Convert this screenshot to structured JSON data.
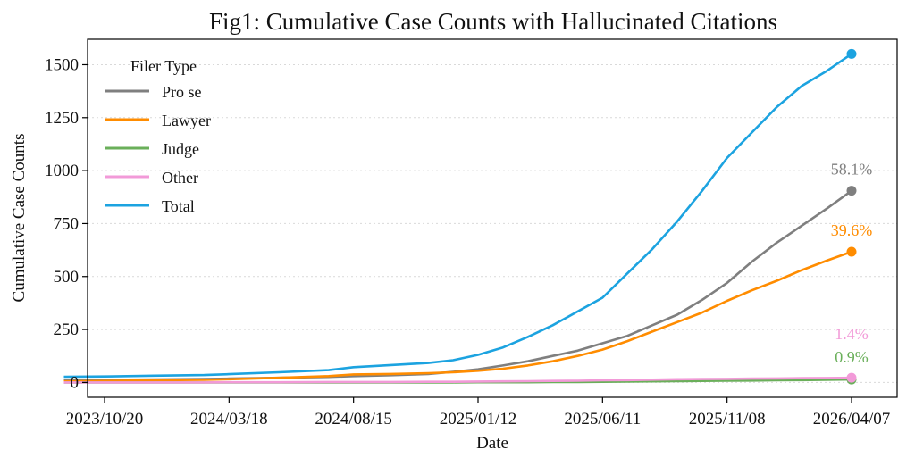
{
  "chart_data": {
    "type": "line",
    "title": "Fig1: Cumulative Case Counts with Hallucinated Citations",
    "xlabel": "Date",
    "ylabel": "Cumulative Case Counts",
    "x_ticks": [
      "2023/10/20",
      "2024/03/18",
      "2024/08/15",
      "2025/01/12",
      "2025/06/11",
      "2025/11/08",
      "2026/04/07"
    ],
    "ylim": [
      -70,
      1620
    ],
    "y_ticks": [
      0,
      250,
      500,
      750,
      1000,
      1250,
      1500
    ],
    "grid": "y-dotted",
    "legend": {
      "title": "Filer Type",
      "placement": "top-left"
    },
    "x_dates": [
      "2023/09/01",
      "2023/10/20",
      "2023/12/19",
      "2024/02/17",
      "2024/03/18",
      "2024/05/17",
      "2024/07/16",
      "2024/08/15",
      "2024/09/29",
      "2024/11/13",
      "2024/12/13",
      "2025/01/12",
      "2025/02/11",
      "2025/03/13",
      "2025/04/12",
      "2025/05/12",
      "2025/06/11",
      "2025/07/11",
      "2025/08/10",
      "2025/09/09",
      "2025/10/09",
      "2025/11/08",
      "2025/12/08",
      "2026/01/07",
      "2026/02/06",
      "2026/03/08",
      "2026/04/07"
    ],
    "series": [
      {
        "name": "Pro se",
        "color": "#7f7f7f",
        "values": [
          10,
          12,
          14,
          16,
          18,
          22,
          26,
          30,
          34,
          40,
          50,
          62,
          80,
          100,
          125,
          150,
          185,
          220,
          270,
          320,
          390,
          470,
          570,
          660,
          740,
          820,
          905
        ],
        "end_label": "58.1%"
      },
      {
        "name": "Lawyer",
        "color": "#ff8c00",
        "values": [
          5,
          7,
          10,
          12,
          15,
          22,
          30,
          38,
          40,
          44,
          48,
          55,
          65,
          80,
          100,
          125,
          155,
          195,
          240,
          285,
          330,
          385,
          435,
          480,
          530,
          575,
          617
        ],
        "end_label": "39.6%"
      },
      {
        "name": "Judge",
        "color": "#6aaf5a",
        "values": [
          0,
          0,
          0,
          0,
          0,
          0,
          0,
          0,
          0,
          0,
          0,
          1,
          1,
          1,
          2,
          2,
          3,
          4,
          5,
          6,
          7,
          8,
          9,
          10,
          11,
          12,
          14
        ],
        "end_label": "0.9%"
      },
      {
        "name": "Other",
        "color": "#f29ad8",
        "values": [
          0,
          0,
          0,
          0,
          1,
          1,
          2,
          2,
          2,
          3,
          3,
          4,
          5,
          6,
          7,
          8,
          10,
          11,
          13,
          15,
          16,
          17,
          18,
          19,
          20,
          21,
          22
        ],
        "end_label": "1.4%"
      },
      {
        "name": "Total",
        "color": "#1ca3e0",
        "values": [
          27,
          28,
          32,
          35,
          39,
          48,
          58,
          72,
          82,
          92,
          105,
          130,
          165,
          215,
          270,
          335,
          400,
          515,
          630,
          760,
          905,
          1060,
          1180,
          1300,
          1400,
          1470,
          1551
        ],
        "end_label": ""
      }
    ]
  }
}
